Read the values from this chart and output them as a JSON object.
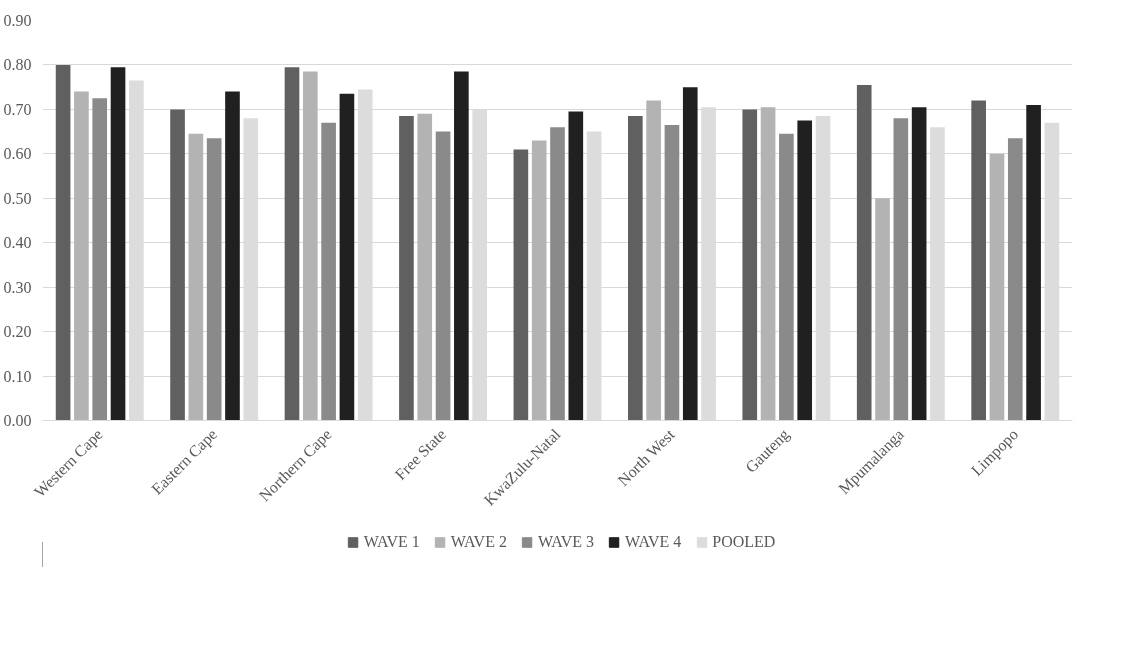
{
  "chart_data": {
    "type": "bar",
    "categories": [
      "Western Cape",
      "Eastern Cape",
      "Northern Cape",
      "Free State",
      "KwaZulu-Natal",
      "North West",
      "Gauteng",
      "Mpumalanga",
      "Limpopo"
    ],
    "series": [
      {
        "name": "WAVE 1",
        "color": "#606060",
        "values": [
          0.8,
          0.7,
          0.795,
          0.685,
          0.61,
          0.685,
          0.7,
          0.755,
          0.72
        ]
      },
      {
        "name": "WAVE 2",
        "color": "#b3b3b3",
        "values": [
          0.74,
          0.645,
          0.785,
          0.69,
          0.63,
          0.72,
          0.705,
          0.5,
          0.6
        ]
      },
      {
        "name": "WAVE 3",
        "color": "#8a8a8a",
        "values": [
          0.725,
          0.635,
          0.67,
          0.65,
          0.66,
          0.665,
          0.645,
          0.68,
          0.635
        ]
      },
      {
        "name": "WAVE 4",
        "color": "#202020",
        "values": [
          0.795,
          0.74,
          0.735,
          0.785,
          0.695,
          0.75,
          0.675,
          0.705,
          0.71
        ]
      },
      {
        "name": "POOLED",
        "color": "#dcdcdc",
        "values": [
          0.765,
          0.68,
          0.745,
          0.7,
          0.65,
          0.705,
          0.685,
          0.66,
          0.67
        ]
      }
    ],
    "ylim": [
      0,
      0.9
    ],
    "yticks": [
      {
        "value": 0,
        "label": "0.00"
      },
      {
        "value": 0.1,
        "label": "0.10"
      },
      {
        "value": 0.2,
        "label": "0.20"
      },
      {
        "value": 0.3,
        "label": "0.30"
      },
      {
        "value": 0.4,
        "label": "0.40"
      },
      {
        "value": 0.5,
        "label": "0.50"
      },
      {
        "value": 0.6,
        "label": "0.60"
      },
      {
        "value": 0.7,
        "label": "0.70"
      },
      {
        "value": 0.8,
        "label": "0.80"
      },
      {
        "value": 0.9,
        "label": "0.90"
      }
    ],
    "grid": "y",
    "legend": "bottom"
  }
}
